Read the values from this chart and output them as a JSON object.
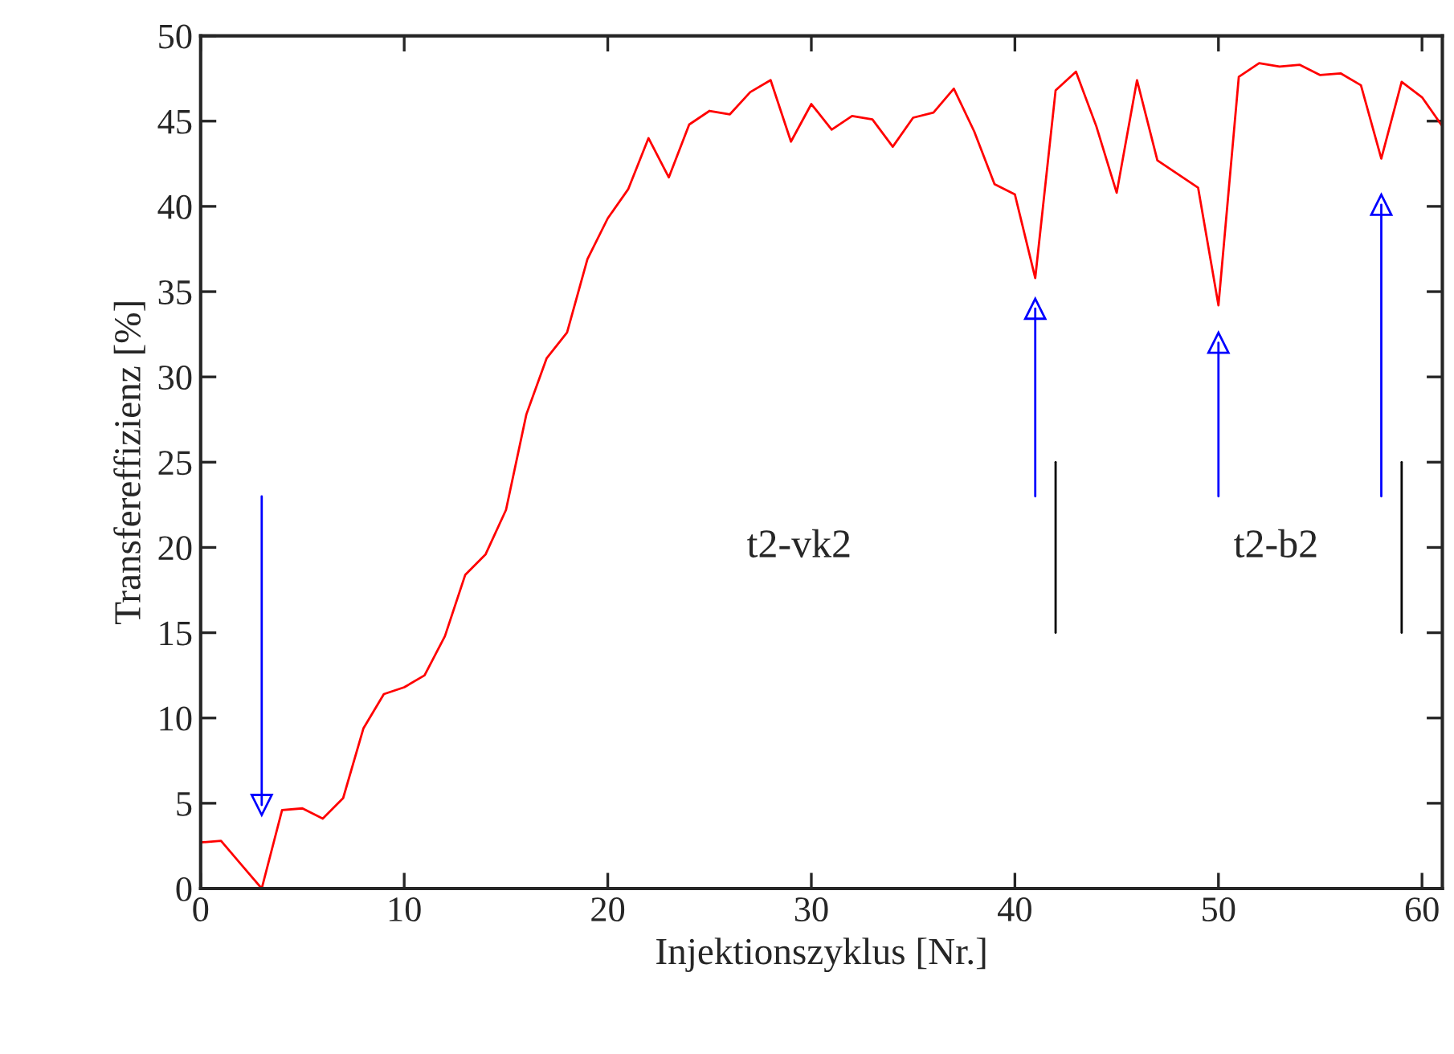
{
  "chart_data": {
    "type": "line",
    "xlabel": "Injektionszyklus [Nr.]",
    "ylabel": "Transfereffizienz [%]",
    "xlim": [
      0,
      61
    ],
    "ylim": [
      0,
      50
    ],
    "xticks": [
      0,
      10,
      20,
      30,
      40,
      50,
      60
    ],
    "yticks": [
      0,
      5,
      10,
      15,
      20,
      25,
      30,
      35,
      40,
      45,
      50
    ],
    "grid": false,
    "legend": false,
    "series": [
      {
        "color": "#ff0000",
        "x": [
          0,
          1,
          2,
          3,
          4,
          5,
          6,
          7,
          8,
          9,
          10,
          11,
          12,
          13,
          14,
          15,
          16,
          17,
          18,
          19,
          20,
          21,
          22,
          23,
          24,
          25,
          26,
          27,
          28,
          29,
          30,
          31,
          32,
          33,
          34,
          35,
          36,
          37,
          38,
          39,
          40,
          41,
          42,
          43,
          44,
          45,
          46,
          47,
          48,
          49,
          50,
          51,
          52,
          53,
          54,
          55,
          56,
          57,
          58,
          59,
          60,
          61
        ],
        "values": [
          2.7,
          2.8,
          1.4,
          0,
          4.6,
          4.7,
          4.1,
          5.3,
          9.4,
          11.4,
          11.8,
          12.5,
          14.8,
          18.4,
          19.6,
          22.2,
          27.8,
          31.1,
          32.6,
          36.9,
          39.3,
          41.0,
          44.0,
          41.7,
          44.8,
          45.6,
          45.4,
          46.7,
          47.4,
          43.8,
          46.0,
          44.5,
          45.3,
          45.1,
          43.5,
          45.2,
          45.5,
          46.9,
          44.4,
          41.3,
          40.7,
          35.8,
          46.8,
          47.9,
          44.7,
          40.8,
          47.4,
          42.7,
          41.9,
          41.1,
          34.2,
          47.6,
          48.4,
          48.2,
          48.3,
          47.7,
          47.8,
          47.1,
          42.8,
          47.3,
          46.4,
          44.7
        ]
      },
      {
        "type": "line",
        "color": "#000000",
        "x": [
          42,
          42
        ],
        "values": [
          25,
          15
        ]
      },
      {
        "type": "line",
        "color": "#000000",
        "x": [
          59,
          59
        ],
        "values": [
          25,
          15
        ]
      },
      {
        "type": "line",
        "marker": "triangle",
        "color": "#0000ff",
        "x": [
          3,
          3
        ],
        "values": [
          23,
          4.9
        ]
      },
      {
        "type": "line",
        "marker": "triangle",
        "color": "#0000ff",
        "x": [
          41,
          41
        ],
        "values": [
          23,
          34.0
        ]
      },
      {
        "type": "line",
        "marker": "triangle",
        "color": "#0000ff",
        "x": [
          50,
          50
        ],
        "values": [
          23,
          32.0
        ]
      },
      {
        "type": "line",
        "marker": "triangle",
        "color": "#0000ff",
        "x": [
          58,
          58
        ],
        "values": [
          23,
          40.1
        ]
      }
    ],
    "annotations": [
      "t2-vk2",
      "t2-b2"
    ]
  }
}
